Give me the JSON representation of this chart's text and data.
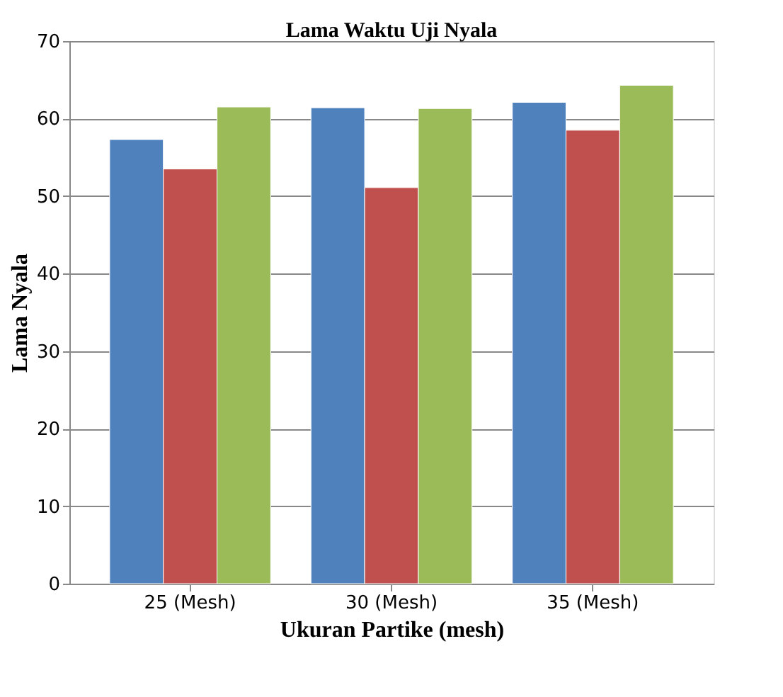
{
  "chart_data": {
    "type": "bar",
    "title": "Lama Waktu Uji Nyala",
    "xlabel": "Ukuran Partike (mesh)",
    "ylabel": "Lama Nyala",
    "categories": [
      "25 (Mesh)",
      "30 (Mesh)",
      "35 (Mesh)"
    ],
    "series": [
      {
        "color": "#4f81bd",
        "values": [
          57.3,
          61.4,
          62.1
        ]
      },
      {
        "color": "#c0504d",
        "values": [
          53.5,
          51.1,
          58.5
        ]
      },
      {
        "color": "#9bbb59",
        "values": [
          61.5,
          61.3,
          64.3
        ]
      }
    ],
    "ylim": [
      0,
      70
    ],
    "yticks": [
      0,
      10,
      20,
      30,
      40,
      50,
      60,
      70
    ],
    "grid": "y",
    "legend": false
  }
}
